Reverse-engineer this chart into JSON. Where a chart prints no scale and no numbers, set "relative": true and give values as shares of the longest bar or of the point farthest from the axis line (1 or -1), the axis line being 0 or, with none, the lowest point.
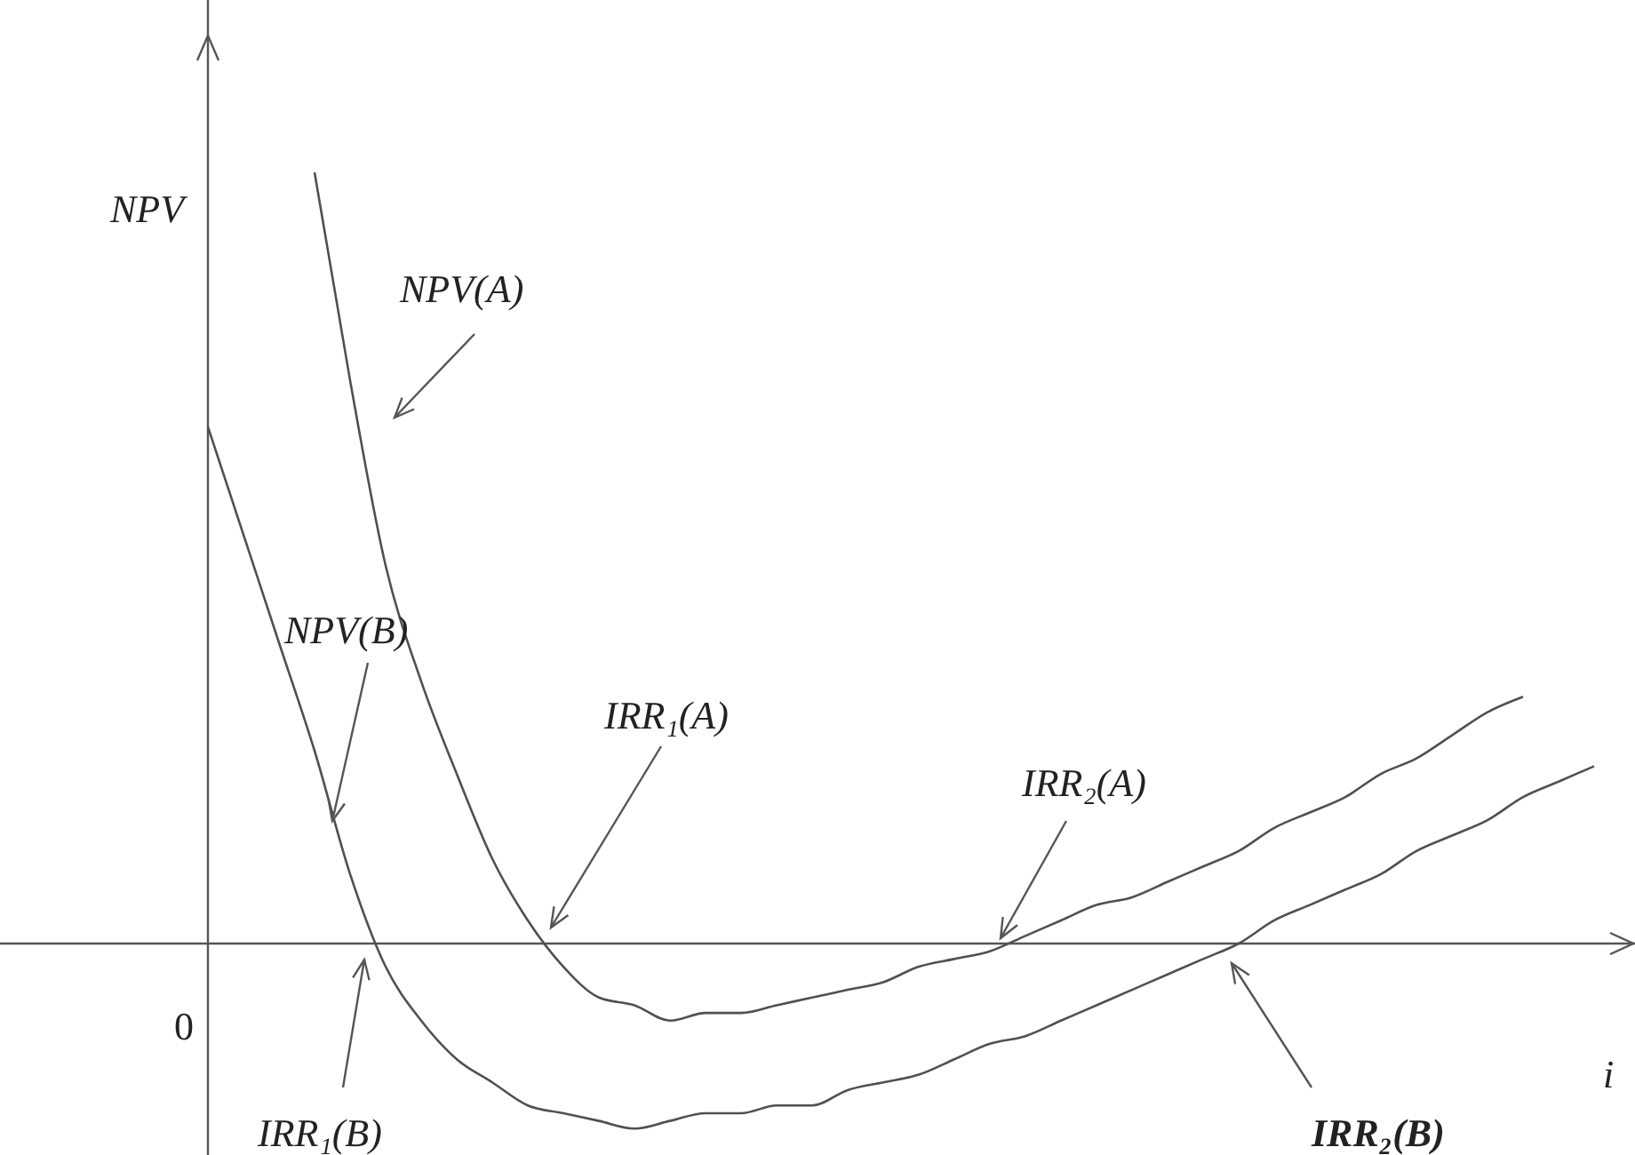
{
  "chart_data": {
    "type": "line",
    "relative": true,
    "xlabel": "i",
    "ylabel": "NPV",
    "categories": [
      null,
      null,
      null,
      null,
      null,
      null,
      null,
      null,
      null,
      null,
      null,
      null,
      null,
      null,
      null,
      null,
      null,
      null,
      null,
      null,
      null,
      null,
      null,
      null,
      null,
      null,
      null,
      null,
      null,
      null,
      null,
      null,
      null,
      null,
      null,
      null,
      null,
      null,
      null,
      null
    ],
    "series": [
      {
        "name": "NPV(A)",
        "color": "#505050",
        "values": [
          null,
          null,
          null,
          1,
          0.73,
          0.49,
          0.34,
          0.22,
          0.11,
          0.03,
          -0.03,
          -0.07,
          -0.08,
          -0.1,
          -0.09,
          -0.09,
          -0.08,
          -0.07,
          -0.06,
          -0.05,
          -0.03,
          -0.02,
          -0.01,
          0.01,
          0.03,
          0.05,
          0.06,
          0.08,
          0.1,
          0.12,
          0.15,
          0.17,
          0.19,
          0.22,
          0.24,
          0.27,
          0.3,
          0.32,
          null,
          null
        ]
      },
      {
        "name": "NPV(B)",
        "color": "#505050",
        "values": [
          0.67,
          0.53,
          0.39,
          0.25,
          0.09,
          -0.03,
          -0.1,
          -0.15,
          -0.18,
          -0.21,
          -0.22,
          -0.23,
          -0.24,
          -0.23,
          -0.22,
          -0.22,
          -0.21,
          -0.21,
          -0.19,
          -0.18,
          -0.17,
          -0.15,
          -0.13,
          -0.12,
          -0.1,
          -0.08,
          -0.06,
          -0.04,
          -0.02,
          0,
          0.03,
          0.05,
          0.07,
          0.09,
          0.12,
          0.14,
          0.16,
          0.19,
          0.21,
          0.23
        ]
      }
    ],
    "annotations": [
      "0",
      "IRR₁(A)",
      "IRR₂(A)",
      "IRR₁(B)",
      "IRR₂(B)"
    ],
    "legend": false,
    "grid": false,
    "marker": "none",
    "line_style": "solid"
  }
}
